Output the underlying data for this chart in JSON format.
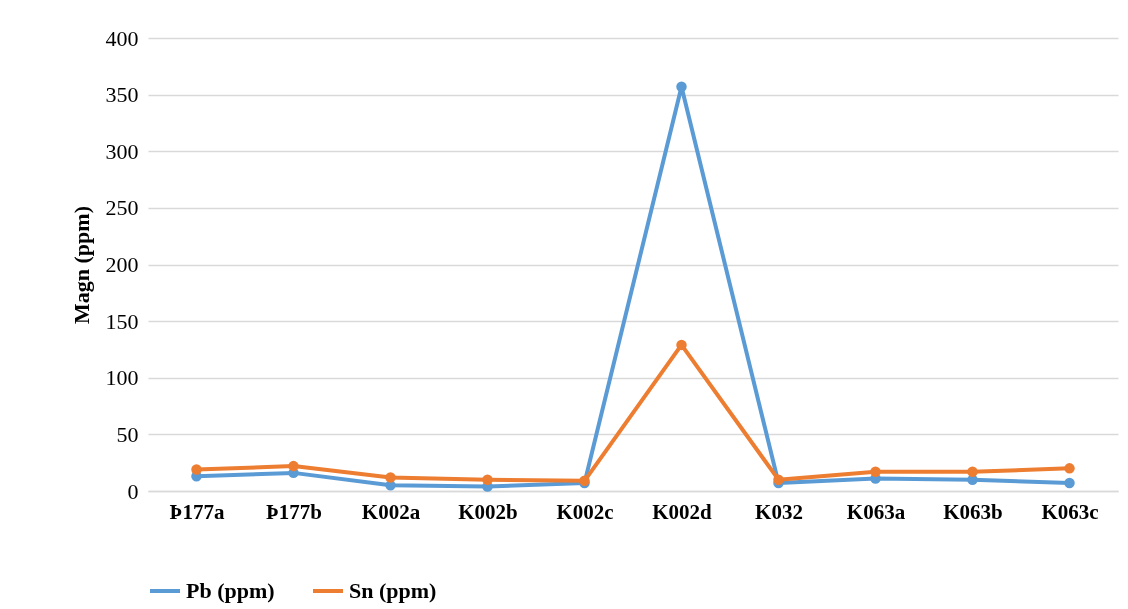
{
  "chart_data": {
    "type": "line",
    "ylabel": "Magn (ppm)",
    "categories": [
      "Þ177a",
      "Þ177b",
      "K002a",
      "K002b",
      "K002c",
      "K002d",
      "K032",
      "K063a",
      "K063b",
      "K063c"
    ],
    "series": [
      {
        "name": "Pb (ppm)",
        "color": "#5b9bd5",
        "values": [
          13,
          16,
          5,
          4,
          7,
          357,
          7,
          11,
          10,
          7
        ]
      },
      {
        "name": "Sn (ppm)",
        "color": "#ed7d31",
        "values": [
          19,
          22,
          12,
          10,
          9,
          129,
          10,
          17,
          17,
          20
        ]
      }
    ],
    "ylim": [
      0,
      400
    ],
    "yticks": [
      0,
      50,
      100,
      150,
      200,
      250,
      300,
      350,
      400
    ],
    "grid": "y",
    "legend": "bottom",
    "marker": "circle",
    "line_style": "solid"
  }
}
